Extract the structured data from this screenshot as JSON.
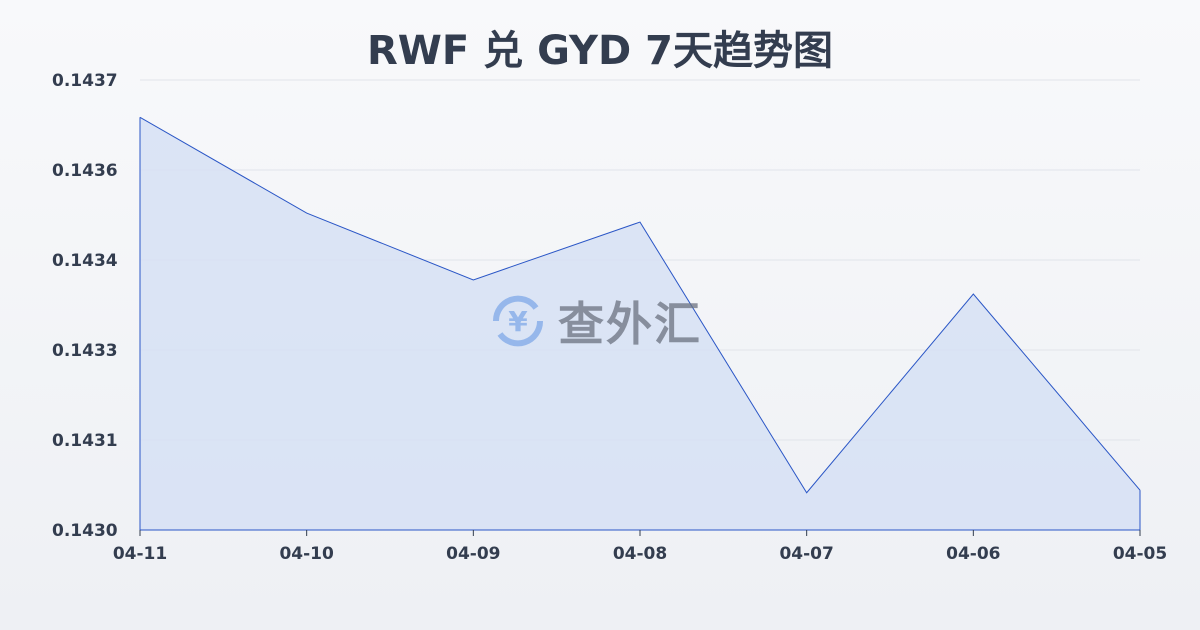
{
  "chart_data": {
    "type": "area",
    "title": "RWF 兑 GYD 7天趋势图",
    "categories": [
      "04-11",
      "04-10",
      "04-09",
      "04-08",
      "04-07",
      "04-06",
      "04-05"
    ],
    "series": [
      {
        "values": [
          0.143642,
          0.143493,
          0.143389,
          0.143479,
          0.143058,
          0.143367,
          0.143062
        ]
      }
    ],
    "yticks": [
      "0.1430",
      "0.1431",
      "0.1433",
      "0.1434",
      "0.1436",
      "0.1437"
    ],
    "ylim": [
      0.143,
      0.1437
    ],
    "grid": true,
    "xlabel": "",
    "ylabel": "",
    "colors": {
      "line": "#2a56c6",
      "fill": "#d6e0f5"
    }
  },
  "watermark": {
    "text": "查外汇",
    "icon": "yen-exchange-icon"
  }
}
